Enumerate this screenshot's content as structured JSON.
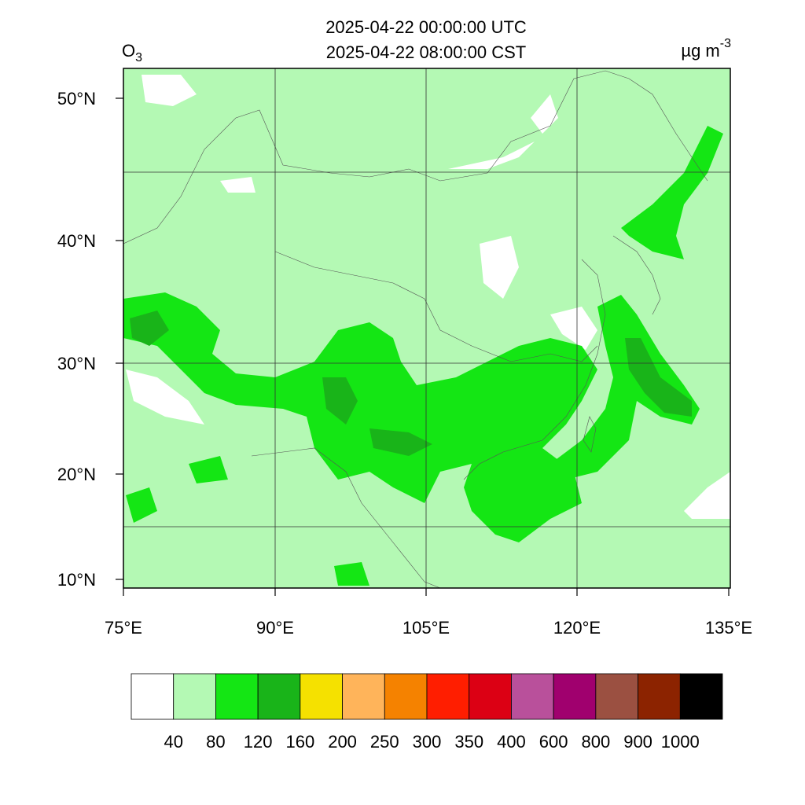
{
  "title": {
    "line1": "2025-04-22 00:00:00 UTC",
    "line2": "2025-04-22 08:00:00 CST"
  },
  "variable": {
    "name": "O",
    "subscript": "3"
  },
  "units": {
    "text": "µg m",
    "superscript": "-3"
  },
  "x_axis": {
    "ticks": [
      "75°E",
      "90°E",
      "105°E",
      "120°E",
      "135°E"
    ]
  },
  "y_axis": {
    "ticks": [
      "50°N",
      "40°N",
      "30°N",
      "20°N",
      "10°N"
    ]
  },
  "colorbar": {
    "colors": [
      "#ffffff",
      "#b4f9b4",
      "#14e614",
      "#19b419",
      "#f5e100",
      "#ffb45a",
      "#f58200",
      "#ff1e00",
      "#dc0014",
      "#b9509b",
      "#a0006e",
      "#9b5041",
      "#8c2300",
      "#000000"
    ],
    "levels": [
      40,
      80,
      120,
      160,
      200,
      250,
      300,
      350,
      400,
      600,
      800,
      900,
      1000
    ]
  }
}
